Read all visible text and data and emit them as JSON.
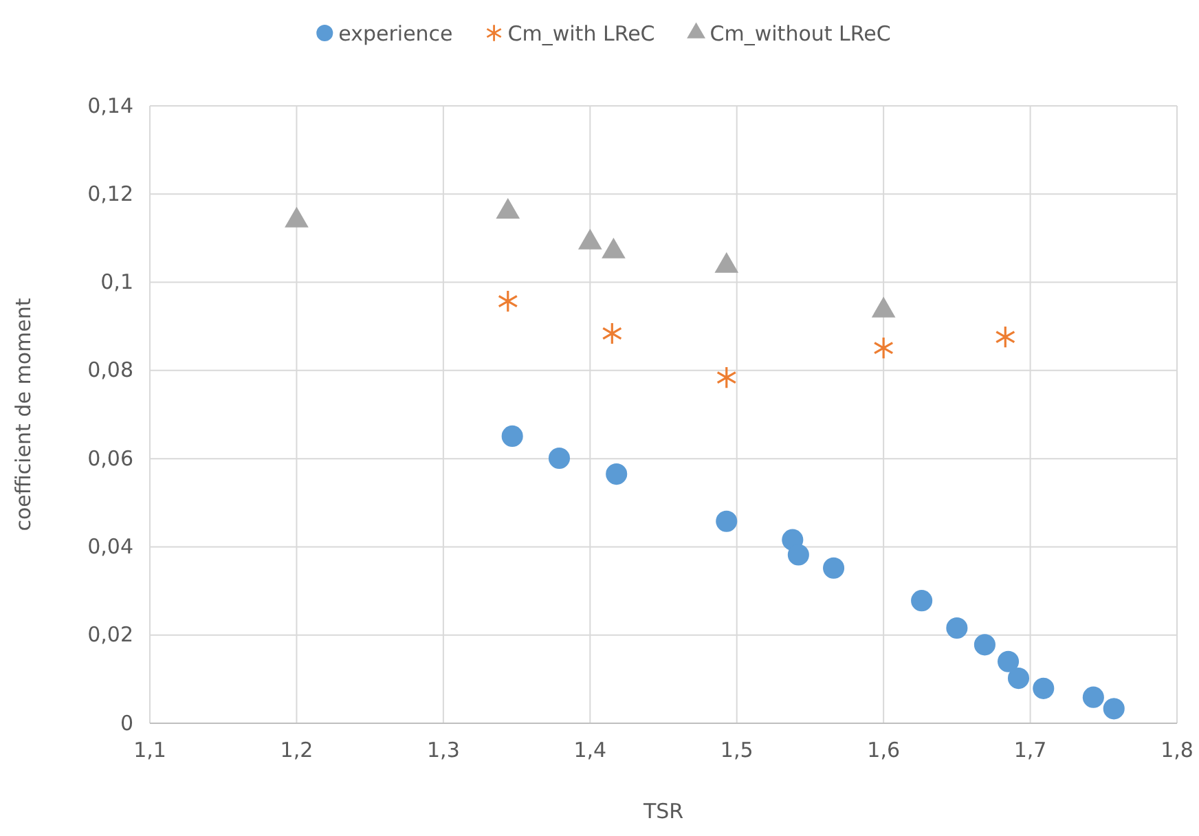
{
  "chart_data": {
    "type": "scatter",
    "xlabel": "TSR",
    "ylabel": "coefficient de moment",
    "xlim": [
      1.1,
      1.8
    ],
    "xticks": [
      {
        "value": 1.1,
        "label": "1,1"
      },
      {
        "value": 1.2,
        "label": "1,2"
      },
      {
        "value": 1.3,
        "label": "1,3"
      },
      {
        "value": 1.4,
        "label": "1,4"
      },
      {
        "value": 1.5,
        "label": "1,5"
      },
      {
        "value": 1.6,
        "label": "1,6"
      },
      {
        "value": 1.7,
        "label": "1,7"
      },
      {
        "value": 1.8,
        "label": "1,8"
      }
    ],
    "ylim": [
      0,
      0.14
    ],
    "yticks": [
      0,
      {
        "value": 0.02,
        "label": "0,02"
      },
      {
        "value": 0.04,
        "label": "0,04"
      },
      {
        "value": 0.06,
        "label": "0,06"
      },
      {
        "value": 0.08,
        "label": "0,08"
      },
      {
        "value": 0.1,
        "label": "0,1"
      },
      {
        "value": 0.12,
        "label": "0,12"
      },
      {
        "value": 0.14,
        "label": "0,14"
      }
    ],
    "grid": true,
    "legend": "top",
    "series": [
      {
        "name": "experience",
        "color": "#5b9bd5",
        "marker": "circle",
        "x": [
          1.347,
          1.379,
          1.418,
          1.493,
          1.538,
          1.542,
          1.566,
          1.626,
          1.65,
          1.669,
          1.685,
          1.692,
          1.709,
          1.743,
          1.757
        ],
        "values": [
          0.0651,
          0.0601,
          0.0565,
          0.0458,
          0.0416,
          0.0382,
          0.0352,
          0.0278,
          0.0216,
          0.0178,
          0.014,
          0.0102,
          0.0079,
          0.0059,
          0.0033
        ]
      },
      {
        "name": "Cm_with LReC",
        "color": "#ed7d31",
        "marker": "cross",
        "x": [
          1.344,
          1.415,
          1.493,
          1.6,
          1.683
        ],
        "values": [
          0.0957,
          0.0884,
          0.0784,
          0.0851,
          0.0876
        ]
      },
      {
        "name": "Cm_without LReC",
        "color": "#a5a5a5",
        "marker": "triangle",
        "x": [
          1.2,
          1.344,
          1.4,
          1.416,
          1.493,
          1.6
        ],
        "values": [
          0.114,
          0.116,
          0.109,
          0.107,
          0.1037,
          0.0936
        ]
      }
    ]
  }
}
